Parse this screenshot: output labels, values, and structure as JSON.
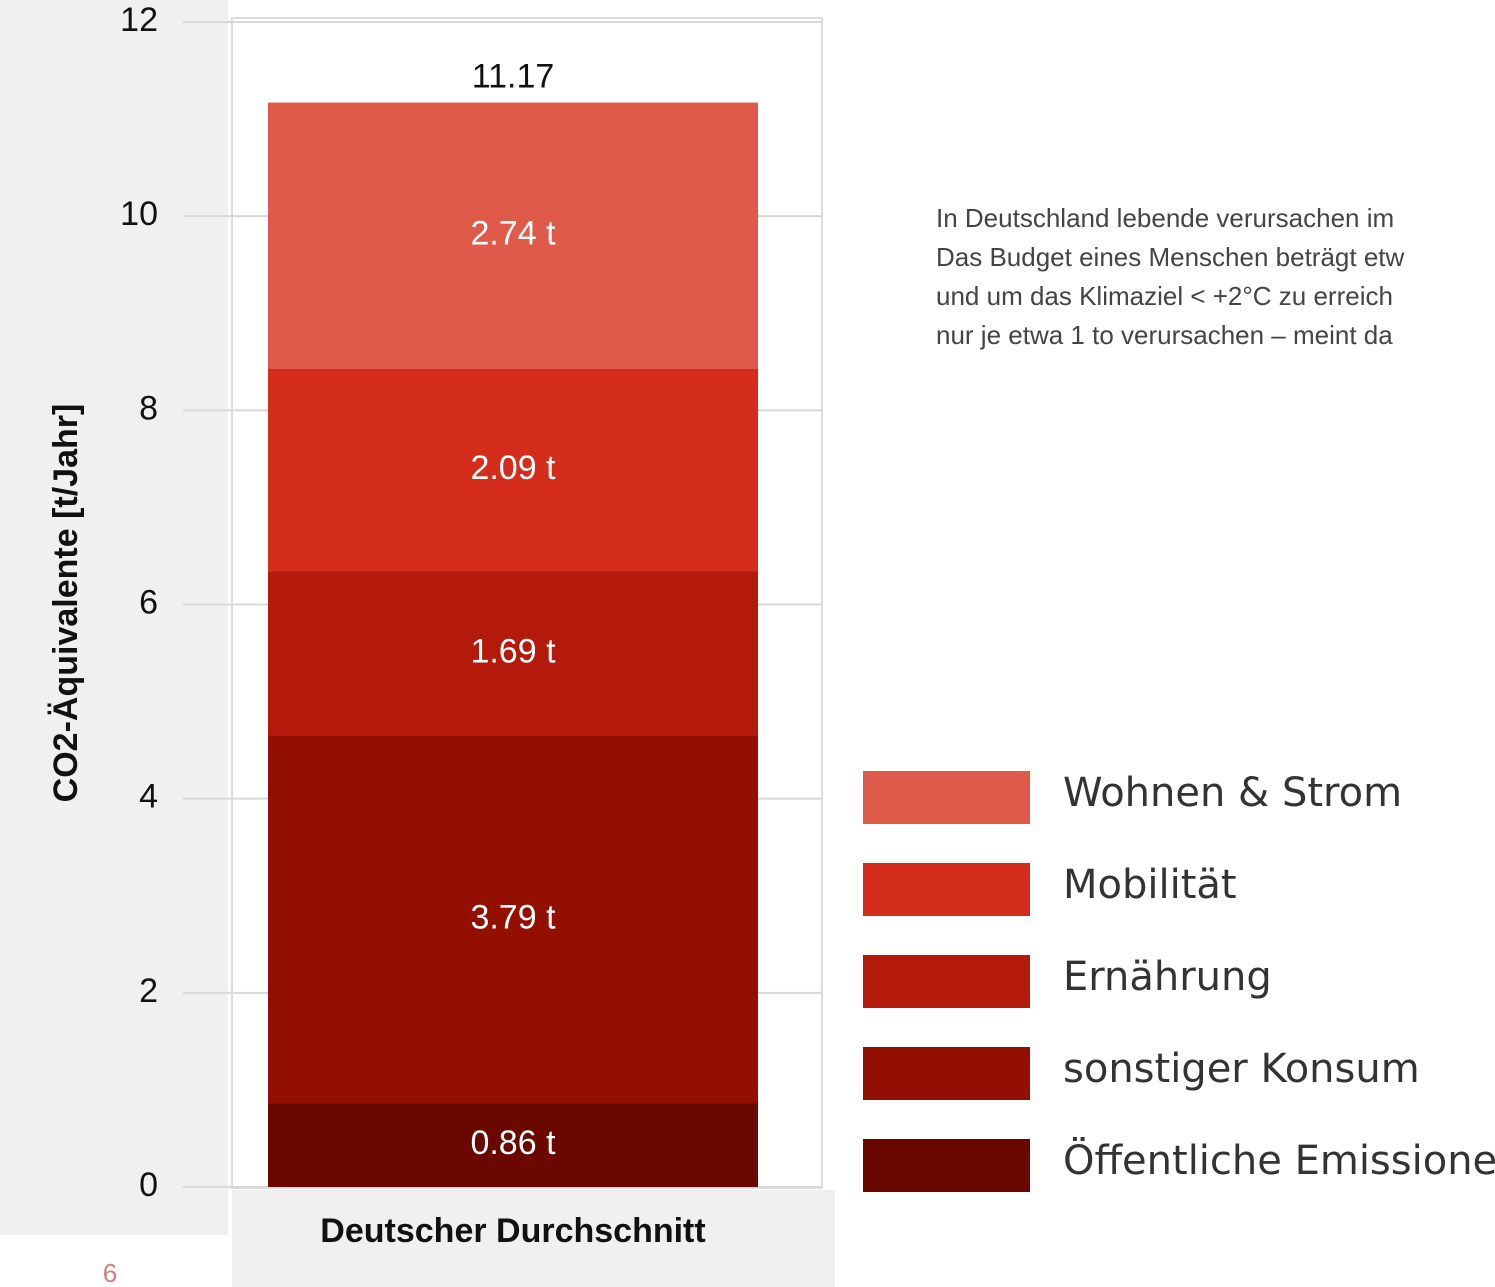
{
  "chart_data": {
    "type": "stacked_bar",
    "y_label": "CO2-Äquivalente [t/Jahr]",
    "categories": [
      "Deutscher Durchschnitt"
    ],
    "series": [
      {
        "name": "Öffentliche Emissionen",
        "color": "#6a0800",
        "values": [
          0.86
        ],
        "value_labels": [
          "0.86 t"
        ]
      },
      {
        "name": "sonstiger Konsum",
        "color": "#931000",
        "values": [
          3.79
        ],
        "value_labels": [
          "3.79 t"
        ]
      },
      {
        "name": "Ernährung",
        "color": "#b41a0c",
        "values": [
          1.69
        ],
        "value_labels": [
          "1.69 t"
        ]
      },
      {
        "name": "Mobilität",
        "color": "#d52d1c",
        "values": [
          2.09
        ],
        "value_labels": [
          "2.09 t"
        ]
      },
      {
        "name": "Wohnen & Strom",
        "color": "#e05a4a",
        "values": [
          2.74
        ],
        "value_labels": [
          "2.74 t"
        ]
      }
    ],
    "total_values": [
      11.17
    ],
    "ylim": [
      0,
      12
    ],
    "yticks": [
      0,
      2,
      4,
      6,
      8,
      10,
      12
    ],
    "grid": true,
    "annotation_lines": [
      "In Deutschland lebende verursachen im",
      "Das Budget eines Menschen beträgt etw",
      "und um das Klimaziel < +2°C zu erreich",
      "nur je etwa 1 to verursachen – meint da"
    ],
    "page_number": "6"
  }
}
